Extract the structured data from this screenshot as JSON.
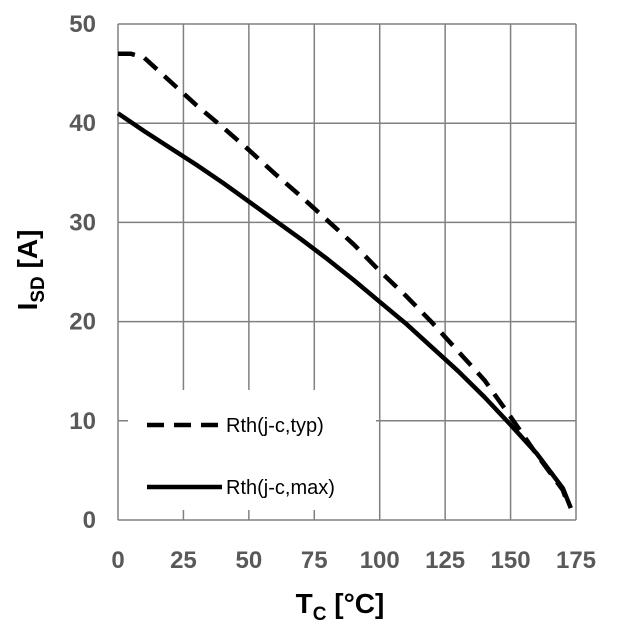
{
  "chart_data": {
    "type": "line",
    "xlabel": {
      "main": "T",
      "sub": "C",
      "rest": " [°C]"
    },
    "ylabel": {
      "main": "I",
      "sub": "SD",
      "rest": " [A]"
    },
    "xlim": [
      0,
      175
    ],
    "ylim": [
      0,
      50
    ],
    "xticks": [
      0,
      25,
      50,
      75,
      100,
      125,
      150,
      175
    ],
    "yticks": [
      0,
      10,
      20,
      30,
      40,
      50
    ],
    "grid": true,
    "legend_position": "lower-left",
    "series": [
      {
        "name": "Rth(j-c,typ)",
        "style": "dashed",
        "color": "#000000",
        "x": [
          0,
          5,
          10,
          20,
          30,
          40,
          50,
          60,
          70,
          80,
          90,
          100,
          110,
          120,
          130,
          140,
          150,
          160,
          170,
          172
        ],
        "y": [
          47,
          47,
          46.6,
          44.2,
          41.8,
          39.6,
          37.3,
          34.9,
          32.6,
          30.2,
          27.8,
          25.1,
          22.6,
          19.9,
          17.0,
          14.1,
          10.4,
          6.6,
          3.0,
          1.5
        ]
      },
      {
        "name": "Rth(j-c,max)",
        "style": "solid",
        "color": "#000000",
        "x": [
          0,
          10,
          20,
          30,
          40,
          50,
          60,
          70,
          80,
          90,
          100,
          110,
          120,
          130,
          140,
          150,
          160,
          170,
          173
        ],
        "y": [
          41,
          39.2,
          37.5,
          35.8,
          34.0,
          32.1,
          30.2,
          28.3,
          26.3,
          24.2,
          22.0,
          19.8,
          17.4,
          15.0,
          12.4,
          9.6,
          6.7,
          3.2,
          1.2
        ]
      }
    ]
  }
}
